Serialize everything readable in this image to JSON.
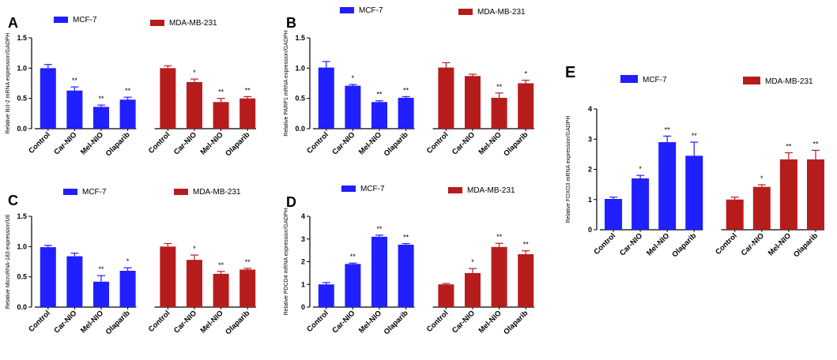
{
  "colors": {
    "mcf7": "#1f1fff",
    "mda": "#b71c1c",
    "axis": "#000000"
  },
  "chart_data": [
    {
      "panel": "A",
      "type": "bar",
      "title": "",
      "ylabel": "Relative Bcl-2 mRNA expression/GADPH",
      "ylim": [
        0,
        1.5
      ],
      "yticks": [
        "0.0",
        "0.5",
        "1.0",
        "1.5"
      ],
      "categories": [
        "Control",
        "Car-NIO",
        "Mel-NIO",
        "Olaparib"
      ],
      "series": [
        {
          "name": "MCF-7",
          "values": [
            1.0,
            0.63,
            0.36,
            0.48
          ],
          "errors": [
            0.06,
            0.06,
            0.03,
            0.04
          ],
          "sig": [
            "",
            "**",
            "**",
            "**"
          ]
        },
        {
          "name": "MDA-MB-231",
          "values": [
            1.0,
            0.77,
            0.44,
            0.5
          ],
          "errors": [
            0.04,
            0.05,
            0.06,
            0.03
          ],
          "sig": [
            "",
            "*",
            "**",
            "**"
          ]
        }
      ]
    },
    {
      "panel": "B",
      "type": "bar",
      "title": "",
      "ylabel": "Relative PARP1 mRNA expression/GADPH",
      "ylim": [
        0,
        1.5
      ],
      "yticks": [
        "0.0",
        "0.5",
        "1.0",
        "1.5"
      ],
      "categories": [
        "Control",
        "Car-NIO",
        "Mel-NIO",
        "Olaparib"
      ],
      "series": [
        {
          "name": "MCF-7",
          "values": [
            1.01,
            0.71,
            0.44,
            0.51
          ],
          "errors": [
            0.1,
            0.02,
            0.02,
            0.02
          ],
          "sig": [
            "",
            "*",
            "**",
            "**"
          ]
        },
        {
          "name": "MDA-MB-231",
          "values": [
            1.01,
            0.87,
            0.51,
            0.75
          ],
          "errors": [
            0.08,
            0.03,
            0.08,
            0.05
          ],
          "sig": [
            "",
            "",
            "**",
            "*"
          ]
        }
      ]
    },
    {
      "panel": "C",
      "type": "bar",
      "title": "",
      "ylabel": "Relative MicroRNA-183 expression/U6",
      "ylim": [
        0,
        1.5
      ],
      "yticks": [
        "0.0",
        "0.5",
        "1.0",
        "1.5"
      ],
      "categories": [
        "Control",
        "Car-NIO",
        "Mel-NIO",
        "Olaparib"
      ],
      "series": [
        {
          "name": "MCF-7",
          "values": [
            0.99,
            0.84,
            0.42,
            0.6
          ],
          "errors": [
            0.03,
            0.05,
            0.1,
            0.05
          ],
          "sig": [
            "",
            "",
            "**",
            "*"
          ]
        },
        {
          "name": "MDA-MB-231",
          "values": [
            1.0,
            0.78,
            0.55,
            0.62
          ],
          "errors": [
            0.05,
            0.08,
            0.04,
            0.02
          ],
          "sig": [
            "",
            "*",
            "**",
            "**"
          ]
        }
      ]
    },
    {
      "panel": "D",
      "type": "bar",
      "title": "",
      "ylabel": "Relative PDCD4 mRNA expression/GADPH",
      "ylim": [
        0,
        4
      ],
      "yticks": [
        "0",
        "1",
        "2",
        "3",
        "4"
      ],
      "categories": [
        "Control",
        "Car-NIO",
        "Mel-NIO",
        "Olaparib"
      ],
      "series": [
        {
          "name": "MCF-7",
          "values": [
            1.0,
            1.9,
            3.1,
            2.75
          ],
          "errors": [
            0.08,
            0.04,
            0.07,
            0.05
          ],
          "sig": [
            "",
            "**",
            "**",
            "**"
          ]
        },
        {
          "name": "MDA-MB-231",
          "values": [
            1.0,
            1.5,
            2.65,
            2.33
          ],
          "errors": [
            0.04,
            0.2,
            0.16,
            0.15
          ],
          "sig": [
            "",
            "*",
            "**",
            "**"
          ]
        }
      ]
    },
    {
      "panel": "E",
      "type": "bar",
      "title": "",
      "ylabel": "Relative FOXO3 mRNA expression/GADPH",
      "ylim": [
        0,
        4
      ],
      "yticks": [
        "0",
        "1",
        "2",
        "3",
        "4"
      ],
      "categories": [
        "Control",
        "Car-NIO",
        "Mel-NIO",
        "Olaparib"
      ],
      "series": [
        {
          "name": "MCF-7",
          "values": [
            1.02,
            1.7,
            2.9,
            2.45
          ],
          "errors": [
            0.06,
            0.1,
            0.2,
            0.45
          ],
          "sig": [
            "",
            "*",
            "**",
            "**"
          ]
        },
        {
          "name": "MDA-MB-231",
          "values": [
            1.0,
            1.42,
            2.33,
            2.33
          ],
          "errors": [
            0.08,
            0.07,
            0.22,
            0.3
          ],
          "sig": [
            "",
            "*",
            "**",
            "**"
          ]
        }
      ]
    }
  ]
}
